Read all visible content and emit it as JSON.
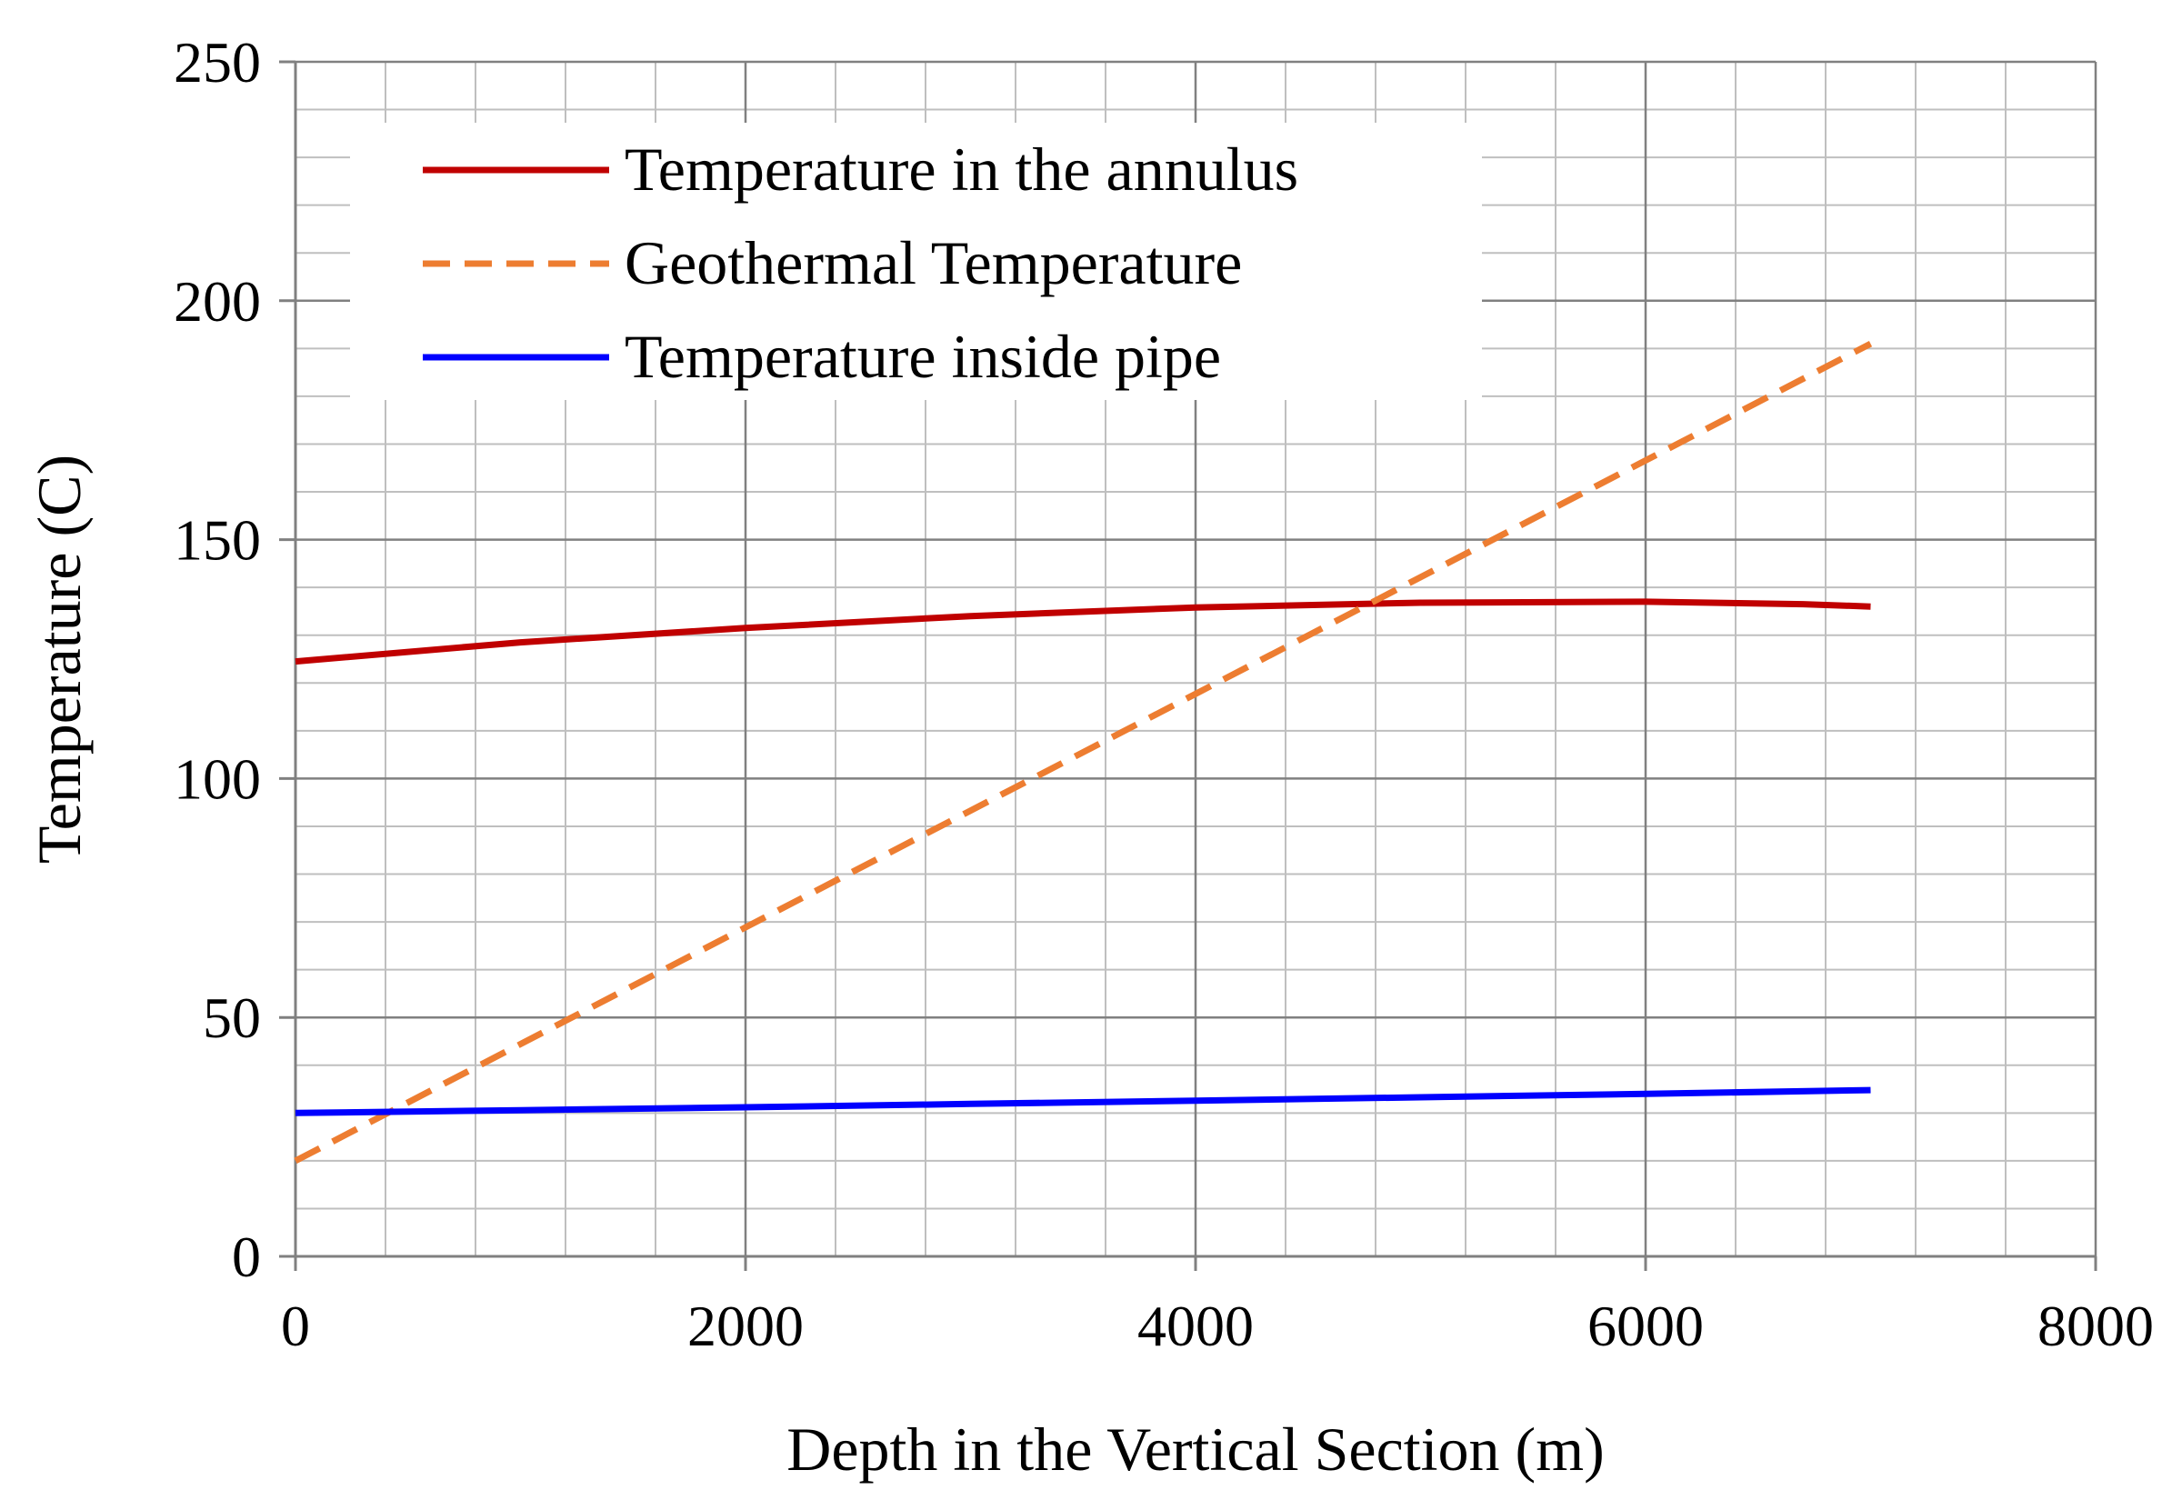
{
  "chart_data": {
    "type": "line",
    "title": "",
    "xlabel": "Depth in the Vertical Section (m)",
    "ylabel": "Temperature (C)",
    "xlim": [
      0,
      8000
    ],
    "ylim": [
      0,
      250
    ],
    "x_ticks": [
      0,
      2000,
      4000,
      6000,
      8000
    ],
    "y_ticks": [
      0,
      50,
      100,
      150,
      200,
      250
    ],
    "x_minor_step": 400,
    "y_minor_step": 10,
    "grid": true,
    "legend_position": "top-left",
    "series": [
      {
        "name": "Temperature in the annulus",
        "color": "#c00000",
        "style": "solid",
        "x": [
          0,
          1000,
          2000,
          3000,
          4000,
          5000,
          6000,
          6700,
          7000
        ],
        "y": [
          124.5,
          128.5,
          131.5,
          134,
          135.8,
          136.8,
          137,
          136.5,
          136
        ]
      },
      {
        "name": "Geothermal Temperature",
        "color": "#ed7d31",
        "style": "dashed",
        "x": [
          0,
          7000
        ],
        "y": [
          20,
          191
        ]
      },
      {
        "name": "Temperature inside pipe",
        "color": "#0000ff",
        "style": "solid",
        "x": [
          0,
          1000,
          2000,
          3000,
          4000,
          5000,
          6000,
          7000
        ],
        "y": [
          30,
          30.6,
          31.2,
          31.9,
          32.6,
          33.3,
          34,
          34.8
        ]
      }
    ]
  }
}
